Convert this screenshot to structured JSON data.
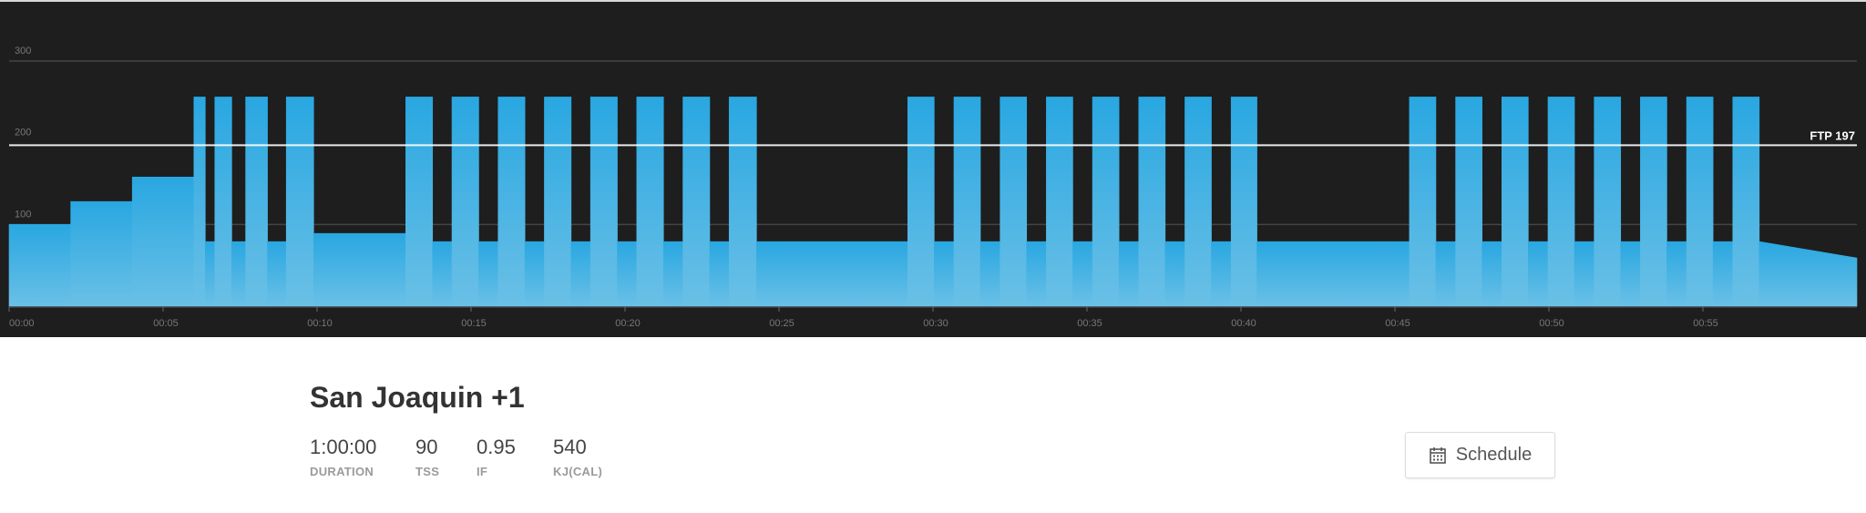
{
  "workout": {
    "title": "San Joaquin +1",
    "stats": [
      {
        "value": "1:00:00",
        "label": "DURATION"
      },
      {
        "value": "90",
        "label": "TSS"
      },
      {
        "value": "0.95",
        "label": "IF"
      },
      {
        "value": "540",
        "label": "KJ(CAL)"
      }
    ],
    "schedule_label": "Schedule",
    "schedule_icon": "calendar-icon"
  },
  "chart_data": {
    "type": "area",
    "xlabel": "",
    "ylabel": "",
    "xlim_minutes": [
      0,
      60
    ],
    "ylim": [
      0,
      300
    ],
    "y_ticks": [
      "100",
      "200",
      "300"
    ],
    "x_ticks": [
      "00:00",
      "00:05",
      "00:10",
      "00:15",
      "00:20",
      "00:25",
      "00:30",
      "00:35",
      "00:40",
      "00:45",
      "00:50",
      "00:55"
    ],
    "ftp": {
      "label": "FTP 197",
      "value": 197
    },
    "colors": {
      "fill_top": "#29a7e1",
      "fill_bottom": "#6ac0e6",
      "background": "#1e1e1e",
      "ftp_line": "#ffffff"
    },
    "segments_minutes_watts": [
      [
        0,
        2,
        100,
        100
      ],
      [
        2,
        4,
        128,
        128
      ],
      [
        4,
        6,
        158,
        158
      ],
      [
        6.0,
        6.37,
        256,
        256
      ],
      [
        6.37,
        6.68,
        79,
        79
      ],
      [
        6.68,
        7.23,
        256,
        256
      ],
      [
        7.23,
        7.68,
        79,
        79
      ],
      [
        7.68,
        8.39,
        256,
        256
      ],
      [
        8.39,
        9.0,
        79,
        79
      ],
      [
        9.0,
        9.89,
        256,
        256
      ],
      [
        9.89,
        12.88,
        89,
        89
      ],
      [
        12.88,
        13.75,
        256,
        256
      ],
      [
        13.75,
        14.38,
        79,
        79
      ],
      [
        14.38,
        15.25,
        256,
        256
      ],
      [
        15.25,
        15.88,
        79,
        79
      ],
      [
        15.88,
        16.75,
        256,
        256
      ],
      [
        16.75,
        17.38,
        79,
        79
      ],
      [
        17.38,
        18.25,
        256,
        256
      ],
      [
        18.25,
        18.88,
        79,
        79
      ],
      [
        18.88,
        19.75,
        256,
        256
      ],
      [
        19.75,
        20.38,
        79,
        79
      ],
      [
        20.38,
        21.25,
        256,
        256
      ],
      [
        21.25,
        21.88,
        79,
        79
      ],
      [
        21.88,
        22.75,
        256,
        256
      ],
      [
        22.75,
        23.38,
        79,
        79
      ],
      [
        23.38,
        24.27,
        256,
        256
      ],
      [
        24.27,
        29.18,
        79,
        79
      ],
      [
        29.18,
        30.04,
        256,
        256
      ],
      [
        30.04,
        30.68,
        79,
        79
      ],
      [
        30.68,
        31.54,
        256,
        256
      ],
      [
        31.54,
        32.18,
        79,
        79
      ],
      [
        32.18,
        33.04,
        256,
        256
      ],
      [
        33.04,
        33.68,
        79,
        79
      ],
      [
        33.68,
        34.54,
        256,
        256
      ],
      [
        34.54,
        35.18,
        79,
        79
      ],
      [
        35.18,
        36.04,
        256,
        256
      ],
      [
        36.04,
        36.68,
        79,
        79
      ],
      [
        36.68,
        37.54,
        256,
        256
      ],
      [
        37.54,
        38.18,
        79,
        79
      ],
      [
        38.18,
        39.04,
        256,
        256
      ],
      [
        39.04,
        39.68,
        79,
        79
      ],
      [
        39.68,
        40.52,
        256,
        256
      ],
      [
        40.52,
        45.47,
        79,
        79
      ],
      [
        45.47,
        46.33,
        256,
        256
      ],
      [
        46.33,
        46.97,
        79,
        79
      ],
      [
        46.97,
        47.83,
        256,
        256
      ],
      [
        47.83,
        48.47,
        79,
        79
      ],
      [
        48.47,
        49.33,
        256,
        256
      ],
      [
        49.33,
        49.97,
        79,
        79
      ],
      [
        49.97,
        50.83,
        256,
        256
      ],
      [
        50.83,
        51.47,
        79,
        79
      ],
      [
        51.47,
        52.33,
        256,
        256
      ],
      [
        52.33,
        52.97,
        79,
        79
      ],
      [
        52.97,
        53.83,
        256,
        256
      ],
      [
        53.83,
        54.47,
        79,
        79
      ],
      [
        54.47,
        55.33,
        256,
        256
      ],
      [
        55.33,
        55.97,
        79,
        79
      ],
      [
        55.97,
        56.83,
        256,
        256
      ],
      [
        56.83,
        60,
        79,
        59
      ]
    ]
  }
}
